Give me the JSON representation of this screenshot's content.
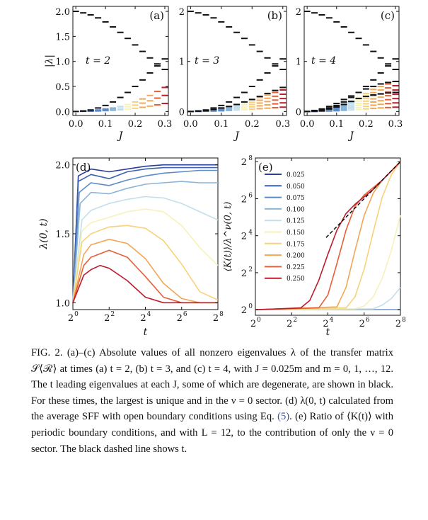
{
  "colors": {
    "leading": "#111111",
    "palette": [
      "#2a3e9b",
      "#3a62b0",
      "#5c8bc5",
      "#8bb4d7",
      "#c3dfeb",
      "#f5f2ba",
      "#f8d27a",
      "#f3a655",
      "#e55f38",
      "#bd1c2b"
    ],
    "dashed": "#111111",
    "eq_link": "#3a53a4"
  },
  "chart_data": [
    {
      "panel": "(a)",
      "type": "scatter",
      "t": 2,
      "xlabel": "J",
      "ylabel": "|λ|",
      "annotation": "t = 2",
      "xlim": [
        -0.01,
        0.312
      ],
      "ylim": [
        -0.08,
        2.1
      ],
      "xticks": [
        "0.0",
        "0.1",
        "0.2",
        "0.3"
      ],
      "yticks": [
        "0.0",
        "0.5",
        "1.0",
        "1.5",
        "2.0"
      ],
      "J": [
        0.0,
        0.025,
        0.05,
        0.075,
        0.1,
        0.125,
        0.15,
        0.175,
        0.2,
        0.225,
        0.25,
        0.275,
        0.3
      ],
      "leading_branches": [
        [
          2.0,
          1.97,
          1.93,
          1.87,
          1.79,
          1.69,
          1.58,
          1.46,
          1.33,
          1.2,
          1.07,
          0.95,
          0.84
        ],
        [
          0.0,
          0.01,
          0.03,
          0.07,
          0.12,
          0.19,
          0.28,
          0.38,
          0.5,
          0.63,
          0.77,
          0.91,
          1.05
        ]
      ],
      "other_max": [
        0.0,
        0.01,
        0.02,
        0.03,
        0.05,
        0.07,
        0.1,
        0.14,
        0.19,
        0.25,
        0.32,
        0.4,
        0.48
      ],
      "other_count": 3
    },
    {
      "panel": "(b)",
      "type": "scatter",
      "t": 3,
      "xlabel": "J",
      "ylabel": "",
      "annotation": "t = 3",
      "xlim": [
        -0.01,
        0.312
      ],
      "ylim": [
        -0.08,
        2.1
      ],
      "xticks": [
        "0.0",
        "0.1",
        "0.2",
        "0.3"
      ],
      "yticks": [
        "0",
        "1",
        "2"
      ],
      "J": [
        0.0,
        0.025,
        0.05,
        0.075,
        0.1,
        0.125,
        0.15,
        0.175,
        0.2,
        0.225,
        0.25,
        0.275,
        0.3
      ],
      "leading_branches": [
        [
          2.0,
          1.97,
          1.93,
          1.87,
          1.79,
          1.69,
          1.58,
          1.46,
          1.33,
          1.2,
          1.07,
          0.95,
          0.84
        ],
        [
          0.0,
          0.01,
          0.03,
          0.07,
          0.12,
          0.19,
          0.28,
          0.38,
          0.5,
          0.63,
          0.77,
          0.91,
          1.05
        ],
        [
          0.0,
          0.01,
          0.02,
          0.04,
          0.07,
          0.1,
          0.14,
          0.19,
          0.24,
          0.3,
          0.36,
          0.42,
          0.48
        ]
      ],
      "other_max": [
        0.0,
        0.01,
        0.02,
        0.04,
        0.07,
        0.1,
        0.14,
        0.18,
        0.23,
        0.28,
        0.33,
        0.38,
        0.43
      ],
      "other_count": 5
    },
    {
      "panel": "(c)",
      "type": "scatter",
      "t": 4,
      "xlabel": "J",
      "ylabel": "",
      "annotation": "t = 4",
      "xlim": [
        -0.01,
        0.312
      ],
      "ylim": [
        -0.08,
        2.1
      ],
      "xticks": [
        "0.0",
        "0.1",
        "0.2",
        "0.3"
      ],
      "yticks": [
        "0",
        "1",
        "2"
      ],
      "J": [
        0.0,
        0.025,
        0.05,
        0.075,
        0.1,
        0.125,
        0.15,
        0.175,
        0.2,
        0.225,
        0.25,
        0.275,
        0.3
      ],
      "leading_branches": [
        [
          2.0,
          1.97,
          1.93,
          1.87,
          1.79,
          1.69,
          1.58,
          1.46,
          1.33,
          1.2,
          1.07,
          0.95,
          0.84
        ],
        [
          0.0,
          0.01,
          0.03,
          0.07,
          0.12,
          0.19,
          0.28,
          0.38,
          0.5,
          0.63,
          0.77,
          0.91,
          1.05
        ],
        [
          0.0,
          0.02,
          0.05,
          0.1,
          0.16,
          0.24,
          0.31,
          0.38,
          0.45,
          0.5,
          0.55,
          0.58,
          0.6
        ],
        [
          0.0,
          0.01,
          0.02,
          0.05,
          0.09,
          0.14,
          0.2,
          0.26,
          0.3,
          0.33,
          0.35,
          0.37,
          0.38
        ]
      ],
      "other_max": [
        0.0,
        0.01,
        0.03,
        0.06,
        0.1,
        0.15,
        0.21,
        0.28,
        0.36,
        0.44,
        0.5,
        0.55,
        0.6
      ],
      "other_count": 7
    },
    {
      "panel": "(d)",
      "type": "line",
      "xlabel": "t",
      "ylabel": "λ(0, t)",
      "xscale": "log2",
      "xlim": [
        0,
        8
      ],
      "ylim": [
        0.95,
        2.05
      ],
      "xticks": [
        "2",
        "2",
        "2",
        "2",
        "2"
      ],
      "xtick_exps": [
        "0",
        "2",
        "4",
        "6",
        "8"
      ],
      "yticks": [
        "1.0",
        "1.5",
        "2.0"
      ],
      "series": [
        {
          "J": "0.025",
          "points": [
            [
              0,
              1.0
            ],
            [
              0.3,
              1.92
            ],
            [
              1,
              1.97
            ],
            [
              2,
              1.95
            ],
            [
              3,
              1.97
            ],
            [
              4,
              1.99
            ],
            [
              5,
              2.0
            ],
            [
              6,
              2.0
            ],
            [
              7,
              2.0
            ],
            [
              8,
              2.0
            ]
          ]
        },
        {
          "J": "0.050",
          "points": [
            [
              0,
              1.0
            ],
            [
              0.3,
              1.88
            ],
            [
              1,
              1.93
            ],
            [
              2,
              1.9
            ],
            [
              3,
              1.95
            ],
            [
              4,
              1.97
            ],
            [
              5,
              1.98
            ],
            [
              6,
              1.98
            ],
            [
              7,
              1.98
            ],
            [
              8,
              1.98
            ]
          ]
        },
        {
          "J": "0.075",
          "points": [
            [
              0,
              1.0
            ],
            [
              0.35,
              1.8
            ],
            [
              1,
              1.87
            ],
            [
              2,
              1.85
            ],
            [
              3,
              1.89
            ],
            [
              4,
              1.92
            ],
            [
              5,
              1.94
            ],
            [
              6,
              1.95
            ],
            [
              7,
              1.96
            ],
            [
              8,
              1.96
            ]
          ]
        },
        {
          "J": "0.100",
          "points": [
            [
              0,
              1.0
            ],
            [
              0.4,
              1.72
            ],
            [
              1,
              1.8
            ],
            [
              2,
              1.79
            ],
            [
              3,
              1.83
            ],
            [
              4,
              1.86
            ],
            [
              5,
              1.87
            ],
            [
              6,
              1.88
            ],
            [
              7,
              1.87
            ],
            [
              8,
              1.87
            ]
          ]
        },
        {
          "J": "0.125",
          "points": [
            [
              0,
              1.0
            ],
            [
              0.5,
              1.6
            ],
            [
              1,
              1.67
            ],
            [
              2,
              1.72
            ],
            [
              3,
              1.75
            ],
            [
              4,
              1.77
            ],
            [
              5,
              1.76
            ],
            [
              6,
              1.72
            ],
            [
              7,
              1.66
            ],
            [
              8,
              1.6
            ]
          ]
        },
        {
          "J": "0.150",
          "points": [
            [
              0,
              1.0
            ],
            [
              0.5,
              1.52
            ],
            [
              1,
              1.58
            ],
            [
              2,
              1.62
            ],
            [
              3,
              1.66
            ],
            [
              4,
              1.68
            ],
            [
              5,
              1.66
            ],
            [
              6,
              1.56
            ],
            [
              7,
              1.4
            ],
            [
              8,
              1.27
            ]
          ]
        },
        {
          "J": "0.175",
          "points": [
            [
              0,
              1.0
            ],
            [
              0.5,
              1.44
            ],
            [
              1,
              1.5
            ],
            [
              2,
              1.55
            ],
            [
              3,
              1.56
            ],
            [
              4,
              1.54
            ],
            [
              5,
              1.45
            ],
            [
              6,
              1.28
            ],
            [
              7,
              1.08
            ],
            [
              8,
              1.02
            ]
          ]
        },
        {
          "J": "0.200",
          "points": [
            [
              0,
              1.0
            ],
            [
              0.6,
              1.35
            ],
            [
              1,
              1.42
            ],
            [
              2,
              1.46
            ],
            [
              3,
              1.43
            ],
            [
              4,
              1.32
            ],
            [
              5,
              1.14
            ],
            [
              6,
              1.03
            ],
            [
              7,
              1.0
            ],
            [
              8,
              1.0
            ]
          ]
        },
        {
          "J": "0.225",
          "points": [
            [
              0,
              1.0
            ],
            [
              0.6,
              1.27
            ],
            [
              1,
              1.33
            ],
            [
              2,
              1.38
            ],
            [
              3,
              1.33
            ],
            [
              4,
              1.19
            ],
            [
              5,
              1.04
            ],
            [
              6,
              1.0
            ],
            [
              7,
              1.0
            ],
            [
              8,
              1.0
            ]
          ]
        },
        {
          "J": "0.250",
          "points": [
            [
              0,
              1.0
            ],
            [
              0.6,
              1.2
            ],
            [
              1,
              1.24
            ],
            [
              1.5,
              1.27
            ],
            [
              2,
              1.25
            ],
            [
              3,
              1.16
            ],
            [
              4,
              1.04
            ],
            [
              5,
              1.0
            ],
            [
              6,
              1.0
            ],
            [
              7,
              1.0
            ],
            [
              8,
              1.0
            ]
          ]
        }
      ]
    },
    {
      "panel": "(e)",
      "type": "line",
      "xlabel": "t",
      "ylabel": "⟨K(t)⟩/λ^ν(0, t)",
      "xscale": "log2",
      "yscale": "log2",
      "xlim": [
        0,
        8
      ],
      "ylim": [
        -0.3,
        8.2
      ],
      "xticks": [
        "2",
        "2",
        "2",
        "2",
        "2"
      ],
      "xtick_exps": [
        "0",
        "2",
        "4",
        "6",
        "8"
      ],
      "yticks": [
        "2",
        "2",
        "2",
        "2",
        "2"
      ],
      "ytick_exps": [
        "0",
        "2",
        "4",
        "6",
        "8"
      ],
      "legend": [
        "0.025",
        "0.050",
        "0.075",
        "0.100",
        "0.125",
        "0.150",
        "0.175",
        "0.200",
        "0.225",
        "0.250"
      ],
      "legend_position": "upper-left",
      "dashed_label": "t",
      "dashed": [
        [
          3.9,
          3.9
        ],
        [
          8,
          8
        ]
      ],
      "series": [
        {
          "J": "0.025",
          "points": [
            [
              0,
              0
            ],
            [
              8,
              0
            ]
          ]
        },
        {
          "J": "0.050",
          "points": [
            [
              0,
              0
            ],
            [
              8,
              0
            ]
          ]
        },
        {
          "J": "0.075",
          "points": [
            [
              0,
              0
            ],
            [
              8,
              0
            ]
          ]
        },
        {
          "J": "0.100",
          "points": [
            [
              0,
              0
            ],
            [
              8,
              0
            ]
          ]
        },
        {
          "J": "0.125",
          "points": [
            [
              0,
              0
            ],
            [
              6.5,
              0.05
            ],
            [
              7,
              0.25
            ],
            [
              7.5,
              0.6
            ],
            [
              8,
              1.2
            ]
          ]
        },
        {
          "J": "0.150",
          "points": [
            [
              0,
              0
            ],
            [
              5.5,
              0.05
            ],
            [
              6,
              0.2
            ],
            [
              6.5,
              0.7
            ],
            [
              7,
              1.7
            ],
            [
              7.5,
              3.2
            ],
            [
              8,
              5.1
            ]
          ]
        },
        {
          "J": "0.175",
          "points": [
            [
              0,
              0
            ],
            [
              5,
              0.1
            ],
            [
              5.5,
              0.7
            ],
            [
              6,
              2.2
            ],
            [
              6.5,
              4.2
            ],
            [
              7,
              6.1
            ],
            [
              7.5,
              7.3
            ],
            [
              8,
              8
            ]
          ]
        },
        {
          "J": "0.200",
          "points": [
            [
              0,
              0
            ],
            [
              4.5,
              0.15
            ],
            [
              5,
              1.2
            ],
            [
              5.5,
              3.2
            ],
            [
              6,
              5.1
            ],
            [
              6.5,
              6.3
            ],
            [
              7,
              7.0
            ],
            [
              7.5,
              7.5
            ],
            [
              8,
              8
            ]
          ]
        },
        {
          "J": "0.225",
          "points": [
            [
              0,
              0
            ],
            [
              3.5,
              0.1
            ],
            [
              4,
              0.8
            ],
            [
              4.5,
              2.5
            ],
            [
              5,
              4.3
            ],
            [
              5.5,
              5.6
            ],
            [
              6,
              6.2
            ],
            [
              6.5,
              6.6
            ],
            [
              7,
              7.0
            ],
            [
              7.5,
              7.5
            ],
            [
              8,
              8
            ]
          ]
        },
        {
          "J": "0.250",
          "points": [
            [
              0,
              0
            ],
            [
              2.5,
              0.1
            ],
            [
              3,
              0.5
            ],
            [
              3.5,
              1.6
            ],
            [
              4,
              3.0
            ],
            [
              4.5,
              4.3
            ],
            [
              5,
              5.2
            ],
            [
              5.5,
              5.7
            ],
            [
              6,
              6.1
            ],
            [
              6.5,
              6.5
            ],
            [
              7,
              7.0
            ],
            [
              7.5,
              7.5
            ],
            [
              8,
              8
            ]
          ]
        }
      ]
    }
  ],
  "caption": {
    "s1": "FIG. 2.    (a)–(c) Absolute values of all nonzero eigenvalues λ of the transfer matrix ",
    "matrix": "𝒮⟨ℛ⟩",
    "s2": " at times (a) t = 2, (b) t = 3, and (c) t = 4, with J = 0.025m and m = 0, 1, …, 12. The t leading eigenvalues at each J, some of which are degenerate, are shown in black. For these times, the largest is unique and in the ν = 0 sector. (d) λ(0, t) calculated from the average SFF with open boundary conditions using Eq. ",
    "eq_ref": "(5)",
    "s3": ". (e) Ratio of ⟨K(t)⟩ with periodic boundary conditions, and with L = 12, to the contribution of only the ν = 0 sector. The black dashed line shows t."
  }
}
